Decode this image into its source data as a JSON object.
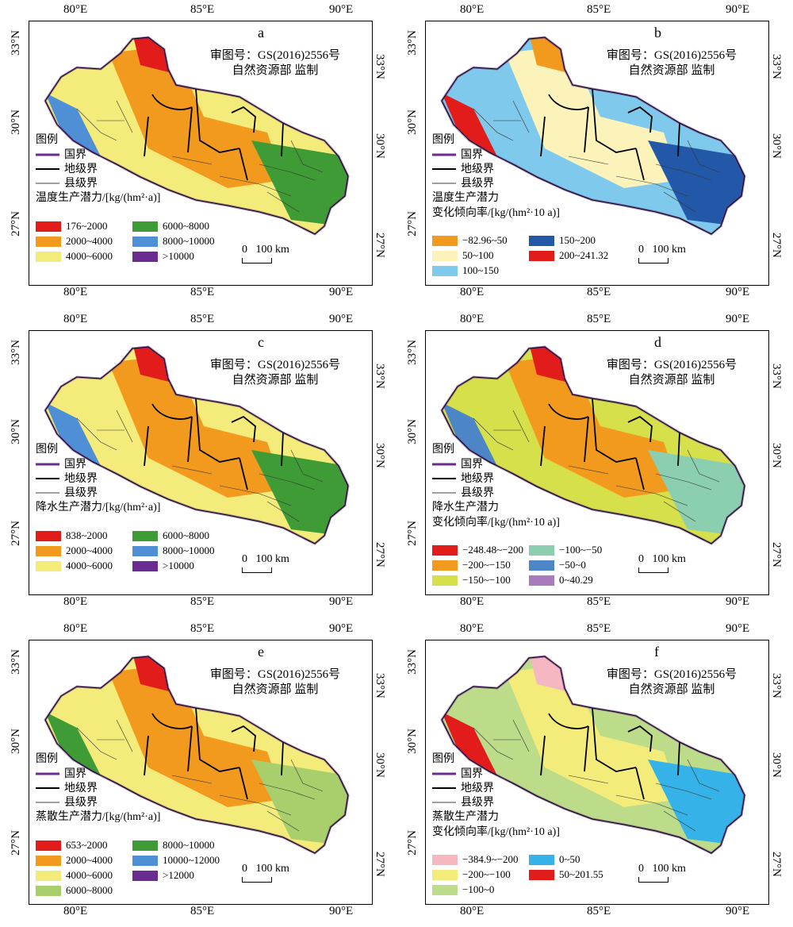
{
  "axes": {
    "lon_labels": [
      "80°E",
      "85°E",
      "90°E"
    ],
    "lat_left": [
      "33°N",
      "30°N",
      "27°N"
    ],
    "lat_right": [
      "33°N",
      "30°N",
      "27°N"
    ]
  },
  "review": {
    "line1": "审图号：GS(2016)2556号",
    "line2": "自然资源部 监制"
  },
  "legend": {
    "title": "图例",
    "national": "国界",
    "prefecture": "地级界",
    "county": "县级界"
  },
  "scalebar": {
    "zero": "0",
    "label": "100 km"
  },
  "colors": {
    "boundary": "#6a2c91",
    "red": "#e21b1b",
    "orange": "#f29a1d",
    "yellow": "#f3ec7a",
    "green": "#3f9b35",
    "lightgreen": "#a9cf6c",
    "blue": "#4f8fd6",
    "purple": "#6a2c91",
    "cream": "#fbf3b9",
    "lightblue": "#7ec9ec",
    "darkblue": "#2358a8",
    "teal": "#8bcfb0",
    "midblue": "#4c86c6",
    "lilac": "#a77bbd",
    "skyblue": "#35b2e7",
    "pink": "#f5b8c0",
    "palegreen": "#bcdc8a"
  },
  "panels": [
    {
      "letter": "a",
      "class_title": "温度生产潜力/[kg/(hm²·a)]",
      "class_title2": "",
      "classes": [
        {
          "label": "176~2000",
          "color": "#e21b1b"
        },
        {
          "label": "2000~4000",
          "color": "#f29a1d"
        },
        {
          "label": "4000~6000",
          "color": "#f3ec7a"
        },
        {
          "label": "6000~8000",
          "color": "#3f9b35"
        },
        {
          "label": "8000~10000",
          "color": "#4f8fd6"
        },
        {
          "label": ">10000",
          "color": "#6a2c91"
        }
      ]
    },
    {
      "letter": "b",
      "class_title": "温度生产潜力",
      "class_title2": "变化倾向率/[kg/(hm²·10 a)]",
      "classes": [
        {
          "label": "−82.96~50",
          "color": "#f29a1d"
        },
        {
          "label": "50~100",
          "color": "#fbf3b9"
        },
        {
          "label": "100~150",
          "color": "#7ec9ec"
        },
        {
          "label": "150~200",
          "color": "#2358a8"
        },
        {
          "label": "200~241.32",
          "color": "#e21b1b"
        }
      ]
    },
    {
      "letter": "c",
      "class_title": "降水生产潜力/[kg/(hm²·a)]",
      "class_title2": "",
      "classes": [
        {
          "label": "838~2000",
          "color": "#e21b1b"
        },
        {
          "label": "2000~4000",
          "color": "#f29a1d"
        },
        {
          "label": "4000~6000",
          "color": "#f3ec7a"
        },
        {
          "label": "6000~8000",
          "color": "#3f9b35"
        },
        {
          "label": "8000~10000",
          "color": "#4f8fd6"
        },
        {
          "label": ">10000",
          "color": "#6a2c91"
        }
      ]
    },
    {
      "letter": "d",
      "class_title": "降水生产潜力",
      "class_title2": "变化倾向率/[kg/(hm²·10 a)]",
      "classes": [
        {
          "label": "−248.48~−200",
          "color": "#e21b1b"
        },
        {
          "label": "−200~−150",
          "color": "#f29a1d"
        },
        {
          "label": "−150~−100",
          "color": "#d6e04a"
        },
        {
          "label": "−100~−50",
          "color": "#8bcfb0"
        },
        {
          "label": "−50~0",
          "color": "#4c86c6"
        },
        {
          "label": "0~40.29",
          "color": "#a77bbd"
        }
      ]
    },
    {
      "letter": "e",
      "class_title": "蒸散生产潜力/[kg/(hm²·a)]",
      "class_title2": "",
      "classes": [
        {
          "label": "653~2000",
          "color": "#e21b1b"
        },
        {
          "label": "2000~4000",
          "color": "#f29a1d"
        },
        {
          "label": "4000~6000",
          "color": "#f3ec7a"
        },
        {
          "label": "6000~8000",
          "color": "#a9cf6c"
        },
        {
          "label": "8000~10000",
          "color": "#3f9b35"
        },
        {
          "label": "10000~12000",
          "color": "#4f8fd6"
        },
        {
          "label": ">12000",
          "color": "#6a2c91"
        }
      ]
    },
    {
      "letter": "f",
      "class_title": "蒸散生产潜力",
      "class_title2": "变化倾向率/[kg/(hm²·10 a)]",
      "classes": [
        {
          "label": "−384.9~−200",
          "color": "#f5b8c0"
        },
        {
          "label": "−200~−100",
          "color": "#f3ec7a"
        },
        {
          "label": "−100~0",
          "color": "#bcdc8a"
        },
        {
          "label": "0~50",
          "color": "#35b2e7"
        },
        {
          "label": "50~201.55",
          "color": "#e21b1b"
        }
      ]
    }
  ]
}
